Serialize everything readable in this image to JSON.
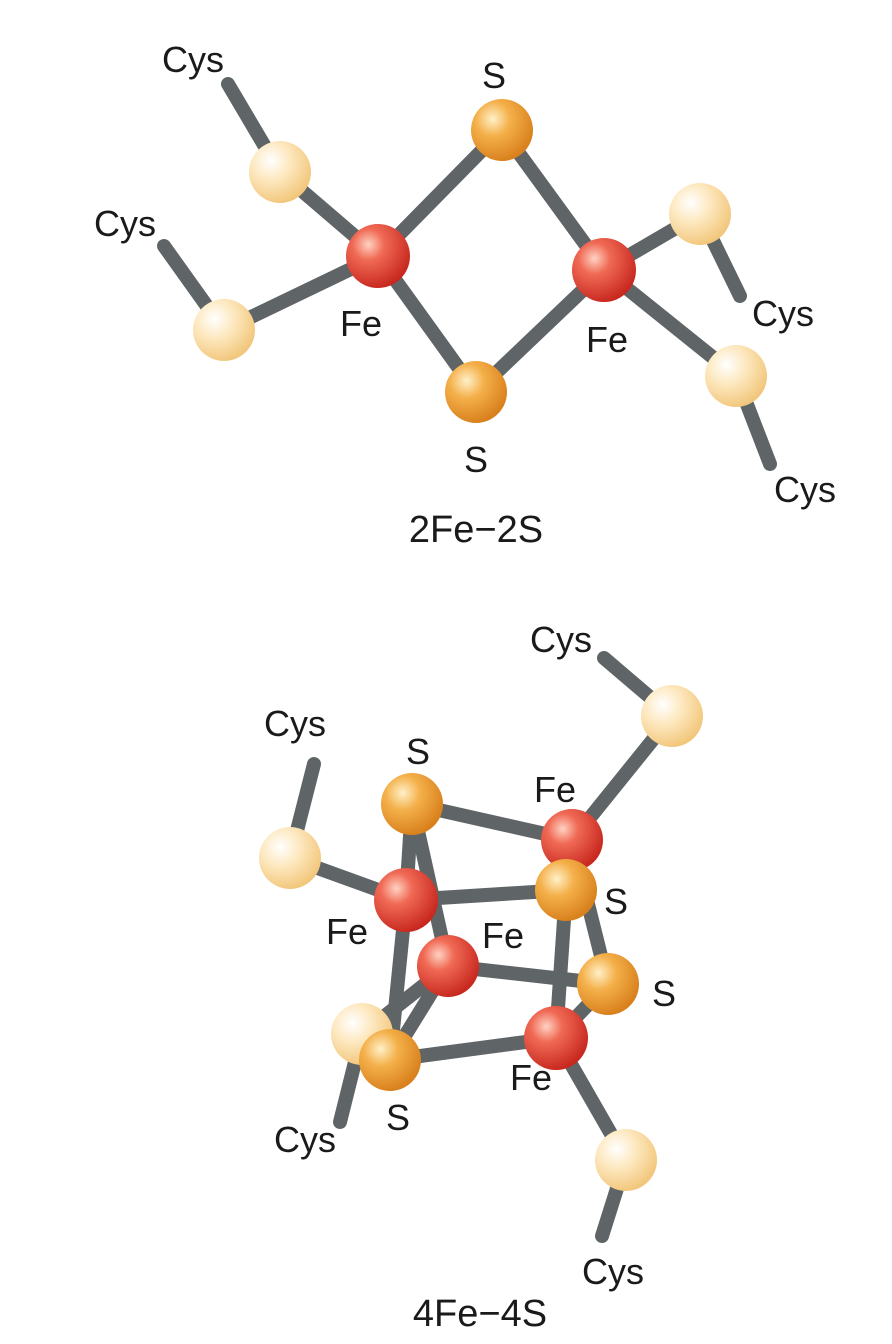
{
  "colors": {
    "iron": "#e4473a",
    "sulfur": "#f0a035",
    "cysteine_sulfur": "#fbd99a",
    "bond": "#5f6467"
  },
  "cluster_2fe2s": {
    "caption": "2Fe−2S",
    "labels": {
      "cys_top_left": "Cys",
      "cys_left": "Cys",
      "cys_right": "Cys",
      "cys_bottom_right": "Cys",
      "s_top": "S",
      "s_bottom": "S",
      "fe_left": "Fe",
      "fe_right": "Fe"
    }
  },
  "cluster_4fe4s": {
    "caption": "4Fe−4S",
    "labels": {
      "cys_top_right": "Cys",
      "cys_top_left": "Cys",
      "cys_bottom_left": "Cys",
      "cys_bottom": "Cys",
      "s_top": "S",
      "s_right_upper": "S",
      "s_right_lower": "S",
      "s_bottom_left": "S",
      "fe_top": "Fe",
      "fe_left": "Fe",
      "fe_center": "Fe",
      "fe_bottom": "Fe"
    }
  }
}
